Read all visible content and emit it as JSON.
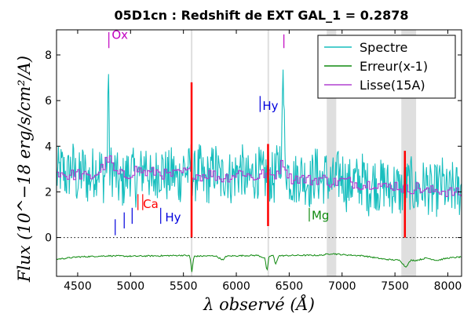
{
  "chart_data": {
    "type": "line",
    "title": "05D1cn : Redshift de EXT GAL_1 = 0.2878",
    "xlabel": "λ observé (Å)",
    "ylabel": "Flux (10^−18 erg/s/cm²/A)",
    "xlim": [
      4300,
      8130
    ],
    "ylim": [
      -1.7,
      9.1
    ],
    "xticks": [
      4500,
      5000,
      5500,
      6000,
      6500,
      7000,
      7500,
      8000
    ],
    "yticks": [
      0,
      2,
      4,
      6,
      8
    ],
    "grid": false,
    "legend_position": "top-right",
    "series": [
      {
        "name": "Spectre",
        "color": "#17bebe",
        "x": [
          4300,
          4350,
          4400,
          4450,
          4500,
          4550,
          4600,
          4650,
          4700,
          4750,
          4780,
          4790,
          4800,
          4850,
          4900,
          4950,
          5000,
          5050,
          5100,
          5150,
          5200,
          5250,
          5300,
          5350,
          5400,
          5450,
          5500,
          5550,
          5570,
          5600,
          5650,
          5700,
          5750,
          5800,
          5850,
          5900,
          5950,
          6000,
          6050,
          6100,
          6150,
          6200,
          6250,
          6300,
          6350,
          6400,
          6430,
          6440,
          6460,
          6500,
          6550,
          6600,
          6650,
          6700,
          6750,
          6800,
          6850,
          6900,
          6950,
          7000,
          7050,
          7100,
          7150,
          7200,
          7250,
          7300,
          7350,
          7400,
          7450,
          7500,
          7550,
          7600,
          7650,
          7700,
          7750,
          7800,
          7850,
          7900,
          7950,
          8000,
          8050,
          8100,
          8130
        ],
        "y": [
          2.7,
          3.0,
          2.6,
          3.2,
          2.4,
          3.0,
          2.5,
          2.9,
          3.1,
          2.6,
          3.5,
          8.2,
          3.0,
          2.9,
          2.2,
          2.6,
          3.0,
          2.5,
          2.8,
          3.4,
          2.2,
          2.9,
          3.0,
          2.6,
          2.9,
          2.4,
          3.1,
          2.8,
          3.2,
          2.6,
          3.0,
          2.4,
          2.7,
          3.1,
          2.5,
          2.9,
          2.6,
          2.8,
          3.0,
          2.4,
          2.7,
          2.9,
          2.6,
          2.8,
          2.5,
          3.1,
          4.0,
          7.8,
          3.4,
          2.7,
          2.5,
          2.8,
          2.6,
          2.4,
          2.9,
          2.5,
          2.7,
          2.3,
          2.6,
          2.8,
          2.2,
          2.5,
          2.4,
          2.6,
          2.1,
          2.5,
          2.2,
          2.4,
          2.1,
          2.3,
          2.0,
          2.2,
          2.4,
          1.9,
          2.2,
          2.3,
          1.9,
          2.1,
          2.4,
          1.8,
          2.2,
          2.0,
          2.1
        ],
        "noise_amplitude": 1.2
      },
      {
        "name": "Erreur(x-1)",
        "color": "#108a10",
        "x": [
          4300,
          4500,
          4800,
          5000,
          5300,
          5500,
          5560,
          5580,
          5600,
          5800,
          5880,
          5900,
          6000,
          6200,
          6270,
          6290,
          6310,
          6350,
          6370,
          6400,
          6600,
          6800,
          6900,
          7000,
          7200,
          7400,
          7550,
          7600,
          7650,
          7700,
          7800,
          7900,
          8000,
          8130
        ],
        "y": [
          -0.95,
          -0.85,
          -0.8,
          -0.82,
          -0.8,
          -0.78,
          -0.8,
          -1.5,
          -0.82,
          -0.8,
          -1.0,
          -0.82,
          -0.8,
          -0.78,
          -0.9,
          -1.5,
          -0.82,
          -0.78,
          -1.2,
          -0.8,
          -0.78,
          -0.78,
          -0.7,
          -0.75,
          -0.8,
          -0.95,
          -1.0,
          -1.3,
          -1.0,
          -1.0,
          -0.9,
          -1.0,
          -0.9,
          -0.85
        ]
      },
      {
        "name": "Lisse(15A)",
        "color": "#b040d0",
        "x": [
          4300,
          4400,
          4500,
          4600,
          4700,
          4790,
          4850,
          4950,
          5050,
          5150,
          5250,
          5350,
          5450,
          5550,
          5650,
          5750,
          5850,
          5950,
          6050,
          6150,
          6250,
          6350,
          6440,
          6500,
          6600,
          6700,
          6800,
          6900,
          7000,
          7100,
          7200,
          7300,
          7400,
          7500,
          7600,
          7700,
          7800,
          7900,
          8000,
          8130
        ],
        "y": [
          2.9,
          2.7,
          2.8,
          2.6,
          2.9,
          3.5,
          2.8,
          2.7,
          3.0,
          2.8,
          2.9,
          2.7,
          2.8,
          2.9,
          2.7,
          2.8,
          2.6,
          2.7,
          2.9,
          2.6,
          2.8,
          2.7,
          3.3,
          2.6,
          2.6,
          2.5,
          2.6,
          2.4,
          2.5,
          2.4,
          2.3,
          2.4,
          2.2,
          2.3,
          2.1,
          2.2,
          2.0,
          2.1,
          2.0,
          1.9
        ]
      }
    ],
    "sky_lines": [
      {
        "x": 5577,
        "color": "#ff0000",
        "y_low": 0.0,
        "y_high": 6.8
      },
      {
        "x": 6300,
        "color": "#ff0000",
        "y_low": 0.5,
        "y_high": 4.1
      },
      {
        "x": 7594,
        "color": "#ff0000",
        "y_low": 0.0,
        "y_high": 3.8
      }
    ],
    "shaded_bands": [
      {
        "x0": 5570,
        "x1": 5585
      },
      {
        "x0": 6295,
        "x1": 6310
      },
      {
        "x0": 6855,
        "x1": 6945
      },
      {
        "x0": 7560,
        "x1": 7700
      }
    ],
    "zero_line": {
      "y": 0,
      "style": "dotted"
    },
    "line_markers": [
      {
        "label": "Ox",
        "color": "#c000c0",
        "x": 4800,
        "y": 8.7,
        "tick_x": 4795,
        "tick_y0": 8.3,
        "tick_y1": 9.0
      },
      {
        "label": "",
        "color": "#c000c0",
        "x": 6450,
        "y": 8.7,
        "tick_x": 6450,
        "tick_y0": 8.3,
        "tick_y1": 8.9
      },
      {
        "label": "Hy",
        "color": "#0000dd",
        "x": 6225,
        "y": 5.6,
        "tick_x": 6225,
        "tick_y0": 5.5,
        "tick_y1": 6.2
      },
      {
        "label": "Ca",
        "color": "#ff0000",
        "x": 5095,
        "y": 1.3,
        "tick_x": 5070,
        "tick_y0": 1.2,
        "tick_y1": 1.9
      },
      {
        "label": "",
        "color": "#ff0000",
        "x": 5120,
        "y": 1.3,
        "tick_x": 5115,
        "tick_y0": 1.2,
        "tick_y1": 1.9
      },
      {
        "label": "Hy",
        "color": "#0000dd",
        "x": 5305,
        "y": 0.7,
        "tick_x": 5285,
        "tick_y0": 0.6,
        "tick_y1": 1.3
      },
      {
        "label": "",
        "color": "#0000dd",
        "x": 4855,
        "y": 0.2,
        "tick_x": 4855,
        "tick_y0": 0.1,
        "tick_y1": 0.8
      },
      {
        "label": "",
        "color": "#0000dd",
        "x": 4940,
        "y": 0.4,
        "tick_x": 4940,
        "tick_y0": 0.4,
        "tick_y1": 1.1
      },
      {
        "label": "",
        "color": "#0000dd",
        "x": 5015,
        "y": 0.6,
        "tick_x": 5015,
        "tick_y0": 0.6,
        "tick_y1": 1.3
      },
      {
        "label": "Mg",
        "color": "#108a10",
        "x": 6690,
        "y": 0.8,
        "tick_x": 6690,
        "tick_y0": 0.7,
        "tick_y1": 1.3
      }
    ]
  }
}
